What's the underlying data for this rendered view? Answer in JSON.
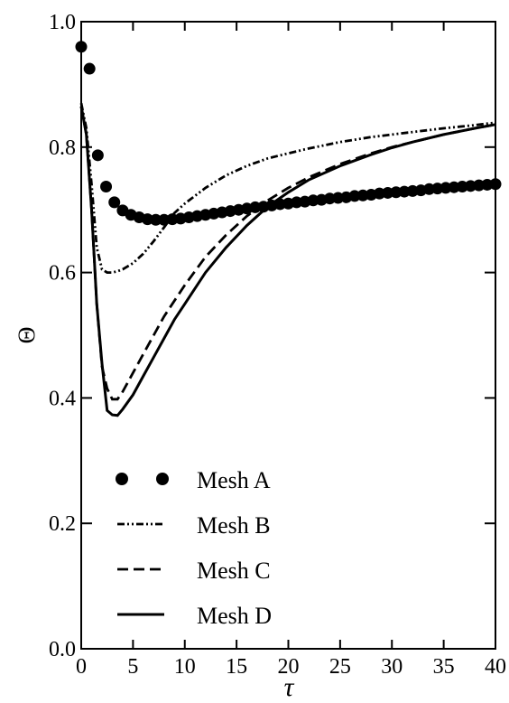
{
  "chart_data": {
    "type": "line",
    "xlabel": "τ",
    "ylabel": "Θ",
    "xlim": [
      0,
      40
    ],
    "ylim": [
      0,
      1
    ],
    "xticks": [
      "0",
      "5",
      "10",
      "15",
      "20",
      "25",
      "30",
      "35",
      "40"
    ],
    "yticks": [
      "0.0",
      "0.2",
      "0.4",
      "0.6",
      "0.8",
      "1.0"
    ],
    "grid": false,
    "legend_position": "bottom-left",
    "series": [
      {
        "name": "Mesh A",
        "style": "markers",
        "color": "#000000",
        "x": [
          0,
          0.8,
          1.6,
          2.4,
          3.2,
          4,
          4.8,
          5.6,
          6.4,
          7.2,
          8,
          8.8,
          9.6,
          10.4,
          11.2,
          12,
          12.8,
          13.6,
          14.4,
          15.2,
          16,
          16.8,
          17.6,
          18.4,
          19.2,
          20,
          20.8,
          21.6,
          22.4,
          23.2,
          24,
          24.8,
          25.6,
          26.4,
          27.2,
          28,
          28.8,
          29.6,
          30.4,
          31.2,
          32,
          32.8,
          33.6,
          34.4,
          35.2,
          36,
          36.8,
          37.6,
          38.4,
          39.2,
          40
        ],
        "y": [
          0.96,
          0.925,
          0.787,
          0.737,
          0.712,
          0.699,
          0.692,
          0.688,
          0.685,
          0.684,
          0.684,
          0.685,
          0.686,
          0.688,
          0.69,
          0.692,
          0.694,
          0.696,
          0.698,
          0.7,
          0.702,
          0.704,
          0.705,
          0.707,
          0.709,
          0.71,
          0.712,
          0.713,
          0.715,
          0.716,
          0.718,
          0.719,
          0.72,
          0.722,
          0.723,
          0.724,
          0.726,
          0.727,
          0.728,
          0.729,
          0.73,
          0.731,
          0.733,
          0.734,
          0.735,
          0.736,
          0.737,
          0.738,
          0.739,
          0.74,
          0.741
        ]
      },
      {
        "name": "Mesh B",
        "style": "dash-dot-dot",
        "color": "#000000",
        "x": [
          0,
          0.5,
          1,
          1.5,
          2,
          2.5,
          3,
          3.5,
          4,
          5,
          6,
          7,
          8,
          9,
          10,
          12,
          14,
          16,
          18,
          20,
          22,
          25,
          28,
          30,
          32,
          35,
          38,
          40
        ],
        "y": [
          0.87,
          0.83,
          0.74,
          0.64,
          0.605,
          0.6,
          0.6,
          0.602,
          0.605,
          0.615,
          0.63,
          0.65,
          0.672,
          0.695,
          0.71,
          0.735,
          0.755,
          0.77,
          0.782,
          0.79,
          0.798,
          0.808,
          0.816,
          0.82,
          0.824,
          0.83,
          0.835,
          0.839
        ]
      },
      {
        "name": "Mesh C",
        "style": "dashed",
        "color": "#000000",
        "x": [
          0,
          0.5,
          1,
          1.5,
          2,
          2.5,
          3,
          3.5,
          4,
          5,
          6,
          7,
          8,
          9,
          10,
          12,
          14,
          16,
          18,
          20,
          22,
          25,
          28,
          30,
          32,
          35,
          38,
          40
        ],
        "y": [
          0.865,
          0.82,
          0.7,
          0.55,
          0.45,
          0.415,
          0.398,
          0.398,
          0.41,
          0.44,
          0.47,
          0.5,
          0.53,
          0.555,
          0.58,
          0.625,
          0.66,
          0.69,
          0.715,
          0.735,
          0.752,
          0.773,
          0.79,
          0.8,
          0.808,
          0.82,
          0.83,
          0.836
        ]
      },
      {
        "name": "Mesh D",
        "style": "solid",
        "color": "#000000",
        "x": [
          0,
          0.5,
          1,
          1.5,
          2,
          2.5,
          3,
          3.5,
          4,
          5,
          6,
          7,
          8,
          9,
          10,
          12,
          14,
          16,
          18,
          20,
          22,
          25,
          28,
          30,
          32,
          35,
          38,
          40
        ],
        "y": [
          0.865,
          0.82,
          0.7,
          0.55,
          0.455,
          0.38,
          0.373,
          0.372,
          0.382,
          0.405,
          0.435,
          0.465,
          0.495,
          0.525,
          0.55,
          0.6,
          0.64,
          0.675,
          0.705,
          0.728,
          0.748,
          0.77,
          0.788,
          0.799,
          0.808,
          0.82,
          0.83,
          0.836
        ]
      }
    ]
  }
}
